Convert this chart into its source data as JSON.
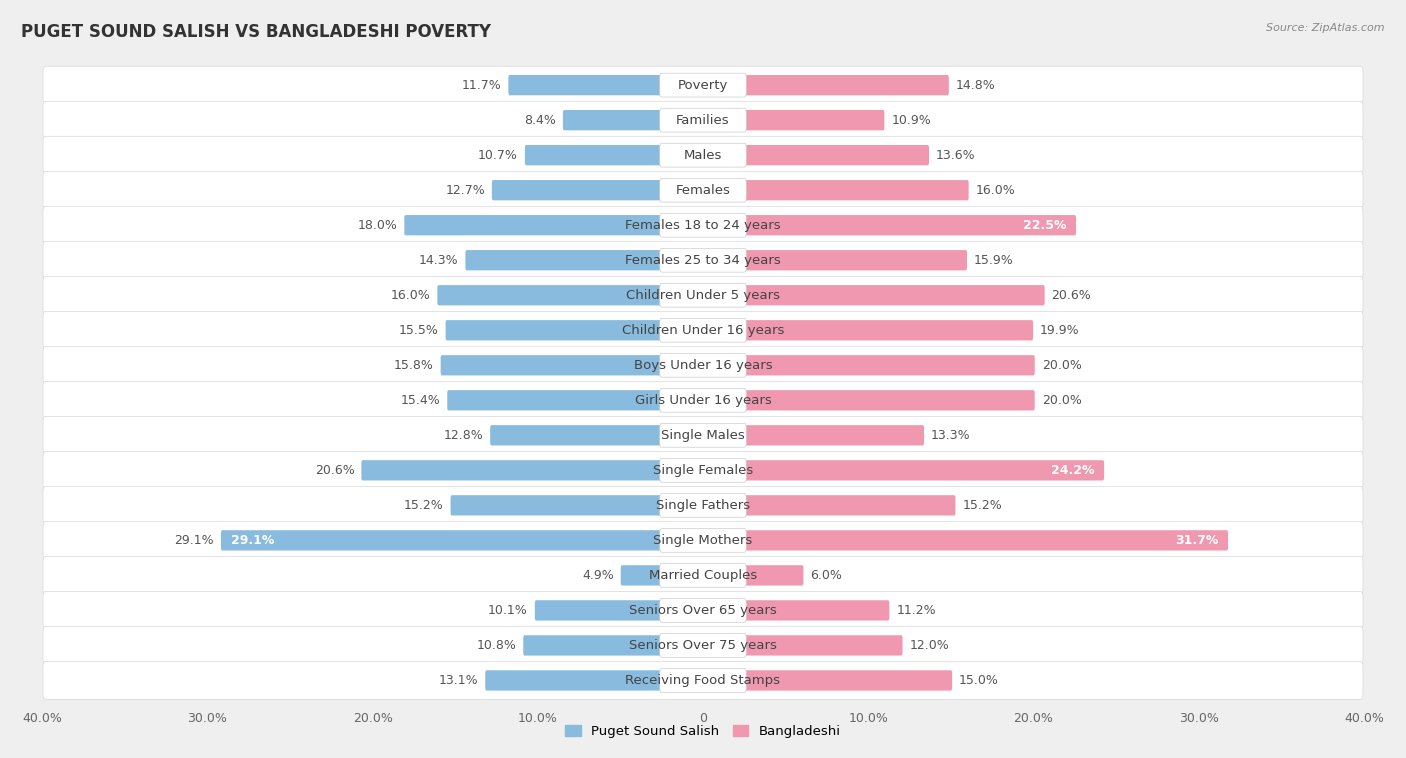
{
  "title": "PUGET SOUND SALISH VS BANGLADESHI POVERTY",
  "source": "Source: ZipAtlas.com",
  "categories": [
    "Poverty",
    "Families",
    "Males",
    "Females",
    "Females 18 to 24 years",
    "Females 25 to 34 years",
    "Children Under 5 years",
    "Children Under 16 years",
    "Boys Under 16 years",
    "Girls Under 16 years",
    "Single Males",
    "Single Females",
    "Single Fathers",
    "Single Mothers",
    "Married Couples",
    "Seniors Over 65 years",
    "Seniors Over 75 years",
    "Receiving Food Stamps"
  ],
  "left_values": [
    11.7,
    8.4,
    10.7,
    12.7,
    18.0,
    14.3,
    16.0,
    15.5,
    15.8,
    15.4,
    12.8,
    20.6,
    15.2,
    29.1,
    4.9,
    10.1,
    10.8,
    13.1
  ],
  "right_values": [
    14.8,
    10.9,
    13.6,
    16.0,
    22.5,
    15.9,
    20.6,
    19.9,
    20.0,
    20.0,
    13.3,
    24.2,
    15.2,
    31.7,
    6.0,
    11.2,
    12.0,
    15.0
  ],
  "left_color": "#88bbdd",
  "right_color": "#f098b0",
  "axis_max": 40.0,
  "legend_left": "Puget Sound Salish",
  "legend_right": "Bangladeshi",
  "background_color": "#efefef",
  "row_bg_color": "#ffffff",
  "row_gap_color": "#e0e0e0",
  "label_fontsize": 9.5,
  "title_fontsize": 12,
  "value_fontsize": 9,
  "source_fontsize": 8
}
